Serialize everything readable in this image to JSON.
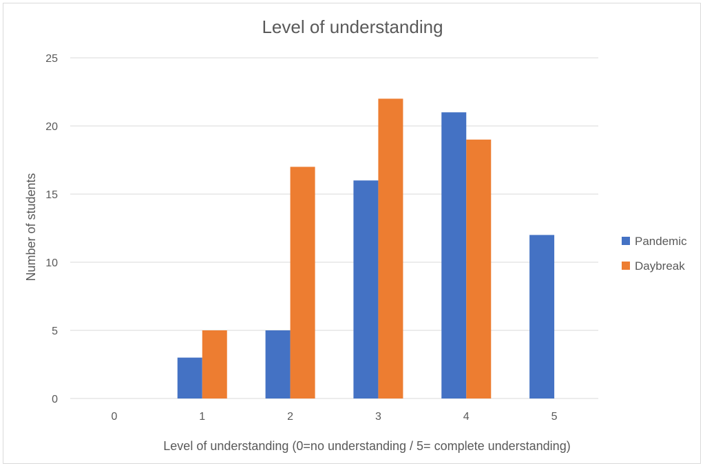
{
  "chart_data": {
    "type": "bar",
    "title": "Level of understanding",
    "xlabel": "Level of understanding (0=no understanding / 5= complete understanding)",
    "ylabel": "Number of students",
    "categories": [
      "0",
      "1",
      "2",
      "3",
      "4",
      "5"
    ],
    "ylim": [
      0,
      25
    ],
    "yticks": [
      0,
      5,
      10,
      15,
      20,
      25
    ],
    "grid": true,
    "legend_position": "right",
    "series": [
      {
        "name": "Pandemic",
        "color": "#4472C4",
        "values": [
          0,
          3,
          5,
          16,
          21,
          12
        ]
      },
      {
        "name": "Daybreak",
        "color": "#ED7D31",
        "values": [
          0,
          5,
          17,
          22,
          19,
          0
        ]
      }
    ]
  }
}
